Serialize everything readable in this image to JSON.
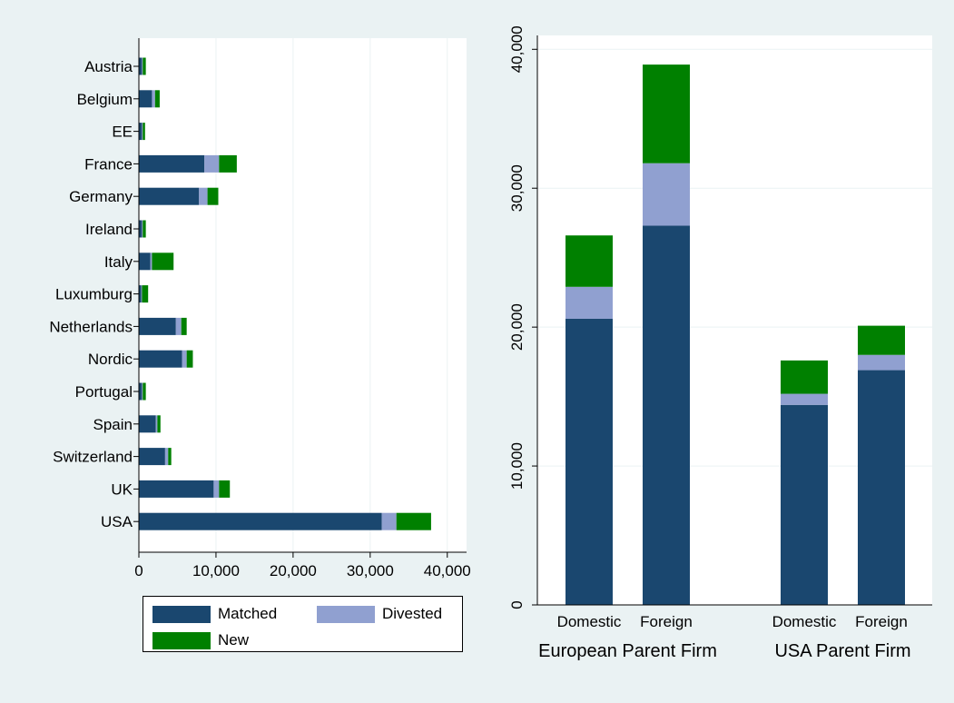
{
  "colors": {
    "Matched": "#1a476f",
    "Divested": "#90a0d0",
    "New": "#008000",
    "plot_bg": "#ffffff",
    "page_bg": "#eaf2f3",
    "grid": "#eaf2f3"
  },
  "legend": {
    "items": [
      {
        "label": "Matched",
        "color": "#1a476f"
      },
      {
        "label": "Divested",
        "color": "#90a0d0"
      },
      {
        "label": "New",
        "color": "#008000"
      }
    ]
  },
  "chart_data": [
    {
      "type": "bar",
      "orientation": "horizontal",
      "stacked": true,
      "categories": [
        "Austria",
        "Belgium",
        "EE",
        "France",
        "Germany",
        "Ireland",
        "Italy",
        "Luxumburg",
        "Netherlands",
        "Nordic",
        "Portugal",
        "Spain",
        "Switzerland",
        "UK",
        "USA"
      ],
      "series": [
        {
          "name": "Matched",
          "values": [
            400,
            1700,
            400,
            8500,
            7800,
            400,
            1500,
            300,
            4800,
            5600,
            400,
            2200,
            3400,
            9700,
            31500
          ]
        },
        {
          "name": "Divested",
          "values": [
            100,
            400,
            100,
            1900,
            1100,
            100,
            200,
            100,
            700,
            600,
            100,
            200,
            400,
            700,
            1900
          ]
        },
        {
          "name": "New",
          "values": [
            400,
            600,
            300,
            2300,
            1400,
            400,
            2800,
            800,
            700,
            800,
            400,
            400,
            400,
            1400,
            4500
          ]
        }
      ],
      "xlim": [
        0,
        42500
      ],
      "xticks": [
        0,
        10000,
        20000,
        30000,
        40000
      ],
      "xtick_labels": [
        "0",
        "10,000",
        "20,000",
        "30,000",
        "40,000"
      ],
      "grid": true,
      "legend_position": "bottom"
    },
    {
      "type": "bar",
      "orientation": "vertical",
      "stacked": true,
      "groups": [
        {
          "label": "European Parent Firm",
          "categories": [
            "Domestic",
            "Foreign"
          ]
        },
        {
          "label": "USA Parent Firm",
          "categories": [
            "Domestic",
            "Foreign"
          ]
        }
      ],
      "series": [
        {
          "name": "Matched",
          "values": [
            20600,
            27300,
            14400,
            16900
          ]
        },
        {
          "name": "Divested",
          "values": [
            2300,
            4500,
            800,
            1100
          ]
        },
        {
          "name": "New",
          "values": [
            3700,
            7100,
            2400,
            2100
          ]
        }
      ],
      "ylim": [
        0,
        41000
      ],
      "yticks": [
        0,
        10000,
        20000,
        30000,
        40000
      ],
      "ytick_labels": [
        "0",
        "10,000",
        "20,000",
        "30,000",
        "40,000"
      ],
      "grid": true
    }
  ]
}
